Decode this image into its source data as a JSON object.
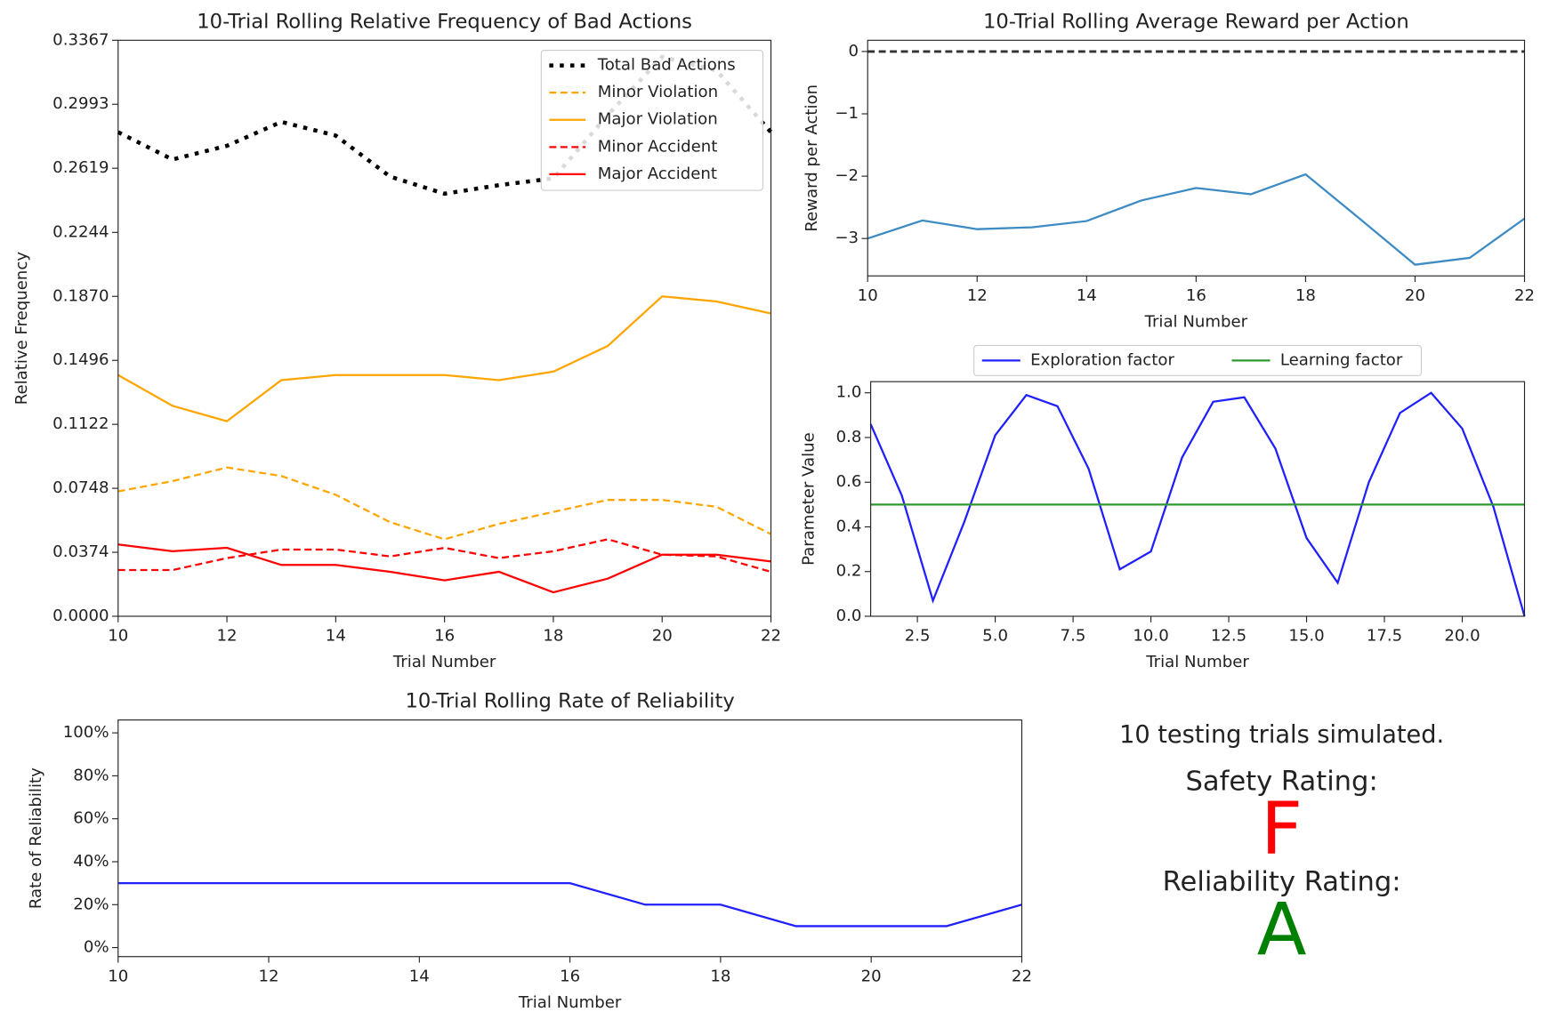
{
  "chart_data": [
    {
      "type": "line",
      "title": "10-Trial Rolling Relative Frequency of Bad Actions",
      "xlabel": "Trial Number",
      "ylabel": "Relative Frequency",
      "x": [
        10,
        11,
        12,
        13,
        14,
        15,
        16,
        17,
        18,
        19,
        20,
        21,
        22
      ],
      "series": [
        {
          "name": "Total Bad Actions",
          "color": "#000000",
          "style": "dotted",
          "values": [
            0.283,
            0.267,
            0.275,
            0.289,
            0.281,
            0.257,
            0.247,
            0.252,
            0.256,
            0.293,
            0.327,
            0.319,
            0.283
          ]
        },
        {
          "name": "Minor Violation",
          "color": "#ffa500",
          "style": "dashed",
          "values": [
            0.073,
            0.079,
            0.087,
            0.082,
            0.071,
            0.055,
            0.045,
            0.054,
            0.061,
            0.068,
            0.068,
            0.064,
            0.048
          ]
        },
        {
          "name": "Major Violation",
          "color": "#ffa500",
          "style": "solid",
          "values": [
            0.141,
            0.123,
            0.114,
            0.138,
            0.141,
            0.141,
            0.141,
            0.138,
            0.143,
            0.158,
            0.187,
            0.184,
            0.177
          ]
        },
        {
          "name": "Minor Accident",
          "color": "#ff0000",
          "style": "dashed",
          "values": [
            0.027,
            0.027,
            0.034,
            0.039,
            0.039,
            0.035,
            0.04,
            0.034,
            0.038,
            0.045,
            0.036,
            0.035,
            0.026
          ]
        },
        {
          "name": "Major Accident",
          "color": "#ff0000",
          "style": "solid",
          "values": [
            0.042,
            0.038,
            0.04,
            0.03,
            0.03,
            0.026,
            0.021,
            0.026,
            0.014,
            0.022,
            0.036,
            0.036,
            0.032
          ]
        }
      ],
      "xlim": [
        10,
        22
      ],
      "xticks": [
        10,
        12,
        14,
        16,
        18,
        20,
        22
      ],
      "ylim": [
        0,
        0.3367
      ],
      "yticks": [
        {
          "value": 0,
          "label": "0.0000"
        },
        0.0374,
        0.0748,
        0.1122,
        0.1496,
        {
          "value": 0.187,
          "label": "0.1870"
        },
        0.2244,
        0.2619,
        0.2993,
        0.3367
      ],
      "legend": "upper right"
    },
    {
      "type": "line",
      "title": "10-Trial Rolling Average Reward per Action",
      "xlabel": "Trial Number",
      "ylabel": "Reward per Action",
      "x": [
        10,
        11,
        12,
        13,
        14,
        15,
        16,
        17,
        18,
        19,
        20,
        21,
        22
      ],
      "series": [
        {
          "color": "#3d8bc4",
          "style": "solid",
          "values": [
            -3.0,
            -2.71,
            -2.85,
            -2.82,
            -2.72,
            -2.39,
            -2.19,
            -2.29,
            -1.97,
            -2.69,
            -3.42,
            -3.31,
            -2.68
          ]
        }
      ],
      "reference_line": {
        "value": 0,
        "color": "#333333",
        "style": "dashed"
      },
      "xlim": [
        10,
        22
      ],
      "xticks": [
        10,
        12,
        14,
        16,
        18,
        20,
        22
      ],
      "ylim": [
        -3.6,
        0.18
      ],
      "yticks": [
        {
          "value": -3,
          "label": "−3"
        },
        {
          "value": -2,
          "label": "−2"
        },
        {
          "value": -1,
          "label": "−1"
        },
        0
      ]
    },
    {
      "type": "line",
      "xlabel": "Trial Number",
      "ylabel": "Parameter Value",
      "x": [
        1,
        2,
        3,
        4,
        5,
        6,
        7,
        8,
        9,
        10,
        11,
        12,
        13,
        14,
        15,
        16,
        17,
        18,
        19,
        20,
        21,
        22
      ],
      "series": [
        {
          "name": "Exploration factor",
          "color": "#2020ff",
          "style": "solid",
          "values": [
            0.86,
            0.54,
            0.07,
            0.42,
            0.81,
            0.99,
            0.94,
            0.66,
            0.21,
            0.29,
            0.71,
            0.96,
            0.98,
            0.75,
            0.35,
            0.15,
            0.6,
            0.91,
            1.0,
            0.84,
            0.49,
            0.0
          ]
        },
        {
          "name": "Learning factor",
          "color": "#2e9a2e",
          "style": "solid",
          "values": [
            0.5,
            0.5,
            0.5,
            0.5,
            0.5,
            0.5,
            0.5,
            0.5,
            0.5,
            0.5,
            0.5,
            0.5,
            0.5,
            0.5,
            0.5,
            0.5,
            0.5,
            0.5,
            0.5,
            0.5,
            0.5,
            0.5
          ]
        }
      ],
      "xlim": [
        1,
        22
      ],
      "xticks": [
        2.5,
        {
          "value": 5,
          "label": "5.0"
        },
        7.5,
        {
          "value": 10,
          "label": "10.0"
        },
        12.5,
        {
          "value": 15,
          "label": "15.0"
        },
        17.5,
        {
          "value": 20,
          "label": "20.0"
        }
      ],
      "ylim": [
        0,
        1.05
      ],
      "yticks": [
        {
          "value": 0,
          "label": "0.0"
        },
        0.2,
        0.4,
        0.6,
        0.8,
        {
          "value": 1,
          "label": "1.0"
        }
      ],
      "legend": "top outside"
    },
    {
      "type": "line",
      "title": "10-Trial Rolling Rate of Reliability",
      "xlabel": "Trial Number",
      "ylabel": "Rate of Reliability",
      "x": [
        10,
        11,
        12,
        13,
        14,
        15,
        16,
        17,
        18,
        19,
        20,
        21,
        22
      ],
      "series": [
        {
          "color": "#2020ff",
          "style": "solid",
          "values": [
            30,
            30,
            30,
            30,
            30,
            30,
            30,
            20,
            20,
            10,
            10,
            10,
            20
          ]
        }
      ],
      "xlim": [
        10,
        22
      ],
      "xticks": [
        10,
        12,
        14,
        16,
        18,
        20,
        22
      ],
      "ylim": [
        -4.2,
        106
      ],
      "yticks": [
        {
          "value": 0,
          "label": "0%"
        },
        {
          "value": 20,
          "label": "20%"
        },
        {
          "value": 40,
          "label": "40%"
        },
        {
          "value": 60,
          "label": "60%"
        },
        {
          "value": 80,
          "label": "80%"
        },
        {
          "value": 100,
          "label": "100%"
        }
      ]
    }
  ],
  "summary": {
    "trials": "10 testing trials simulated.",
    "safety_label": "Safety Rating:",
    "safety_grade": "F",
    "safety_color": "#ff0000",
    "reliability_label": "Reliability Rating:",
    "reliability_grade": "A",
    "reliability_color": "#008000"
  }
}
